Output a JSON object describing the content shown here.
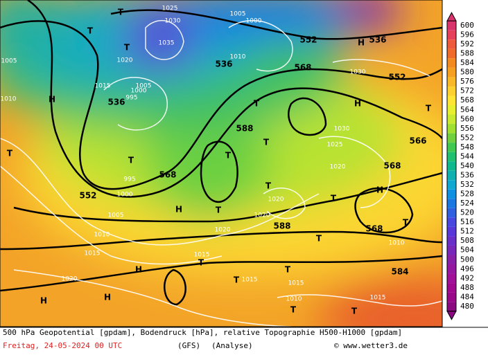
{
  "colorbar": {
    "ticks": [
      600,
      596,
      592,
      588,
      584,
      580,
      576,
      572,
      568,
      564,
      560,
      556,
      552,
      548,
      544,
      540,
      536,
      532,
      528,
      524,
      520,
      516,
      512,
      508,
      504,
      500,
      496,
      492,
      488,
      484,
      480
    ],
    "colors": [
      "#d8336c",
      "#e6415a",
      "#ee5a3c",
      "#f06a2a",
      "#f28a20",
      "#f5a020",
      "#f8b828",
      "#fcd02e",
      "#fde435",
      "#e8ee30",
      "#c8ea30",
      "#a0e030",
      "#70d040",
      "#40c850",
      "#20c070",
      "#10b890",
      "#10b0b0",
      "#10a8d0",
      "#1090e0",
      "#1a78e0",
      "#3060e0",
      "#4848e0",
      "#5838d8",
      "#6830c8",
      "#7828b8",
      "#8820a8",
      "#9418a0",
      "#a01098",
      "#a00890",
      "#980888",
      "#8a0880"
    ]
  },
  "map_labels": {
    "contours": [
      552,
      536,
      536,
      568,
      552,
      536,
      588,
      566,
      568,
      552,
      568,
      588,
      568,
      584
    ],
    "isobars": [
      1030,
      1025,
      1005,
      1000,
      1035,
      1020,
      1010,
      1015,
      1005,
      1000,
      995,
      1030,
      1030,
      1025,
      1020,
      1020,
      1020,
      1020,
      1005,
      1010,
      1015,
      1020,
      1015,
      1015,
      1015,
      1010,
      1015,
      1010,
      995,
      1000,
      1005,
      1010
    ],
    "pressure_centers": [
      "T",
      "T",
      "T",
      "H",
      "T",
      "T",
      "H",
      "T",
      "T",
      "T",
      "T",
      "T",
      "T",
      "H",
      "T",
      "H",
      "H",
      "H",
      "T",
      "T",
      "T",
      "T",
      "T",
      "H",
      "H",
      "T",
      "T"
    ]
  },
  "footer": {
    "description": "500 hPa Geopotential [gpdam], Bodendruck [hPa], relative Topographie H500-H1000 [gpdam]",
    "date": "Freitag, 24-05-2024  00 UTC",
    "model": "(GFS)",
    "run": "(Analyse)",
    "source": "© www.wetter3.de"
  }
}
